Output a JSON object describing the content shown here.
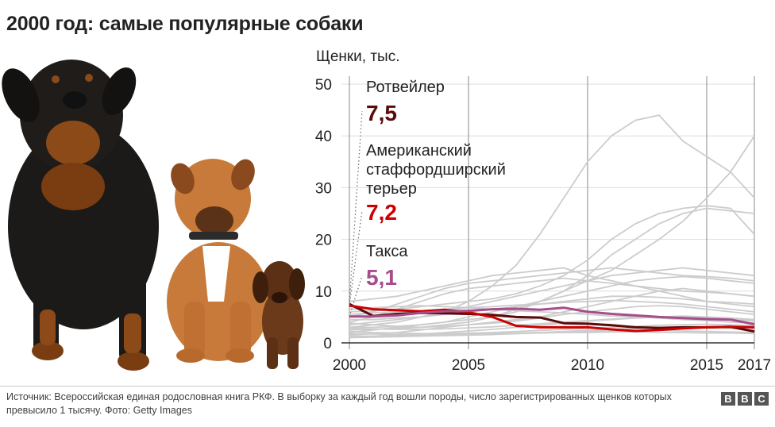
{
  "header": {
    "title": "2000 год: самые популярные собаки"
  },
  "footer": {
    "source": "Источник: Всероссийская единая родословная книга РКФ. В выборку за каждый год вошли породы, число зарегистрированных щенков которых превысило 1 тысячу. Фото: Getty Images",
    "logo": [
      "B",
      "B",
      "C"
    ]
  },
  "colors": {
    "rottweiler": "#5a0a0a",
    "amstaff": "#cc0000",
    "dachshund": "#a64d8c",
    "background_series": "#cccccc",
    "axis": "#333333"
  },
  "photo": {
    "icon": "dogs-photo",
    "subjects": [
      "rottweiler",
      "staffordshire-terrier",
      "dachshund"
    ]
  },
  "chart_data": {
    "type": "line",
    "ylabel": "Щенки, тыс.",
    "xlim": [
      2000,
      2017
    ],
    "ylim": [
      0,
      50
    ],
    "xticks": [
      2000,
      2005,
      2010,
      2015,
      2017
    ],
    "yticks": [
      0,
      10,
      20,
      30,
      40,
      50
    ],
    "x": [
      2000,
      2001,
      2002,
      2003,
      2004,
      2005,
      2006,
      2007,
      2008,
      2009,
      2010,
      2011,
      2012,
      2013,
      2014,
      2015,
      2016,
      2017
    ],
    "highlighted": [
      {
        "name": "Ротвейлер",
        "value_label": "7,5",
        "color": "#5a0a0a",
        "values": [
          7.5,
          5.2,
          5.6,
          5.8,
          5.7,
          5.6,
          5.4,
          5.0,
          4.9,
          3.8,
          3.7,
          3.4,
          3.0,
          2.9,
          3.0,
          3.0,
          3.1,
          2.2
        ]
      },
      {
        "name": "Американский стаффордширский терьер",
        "name_lines": [
          "Американский",
          "стаффордширский",
          "терьер"
        ],
        "value_label": "7,2",
        "color": "#cc0000",
        "values": [
          7.2,
          6.5,
          6.3,
          6.1,
          6.4,
          5.9,
          5.0,
          3.3,
          3.0,
          3.0,
          3.0,
          2.6,
          2.3,
          2.5,
          2.8,
          3.0,
          3.1,
          3.0
        ]
      },
      {
        "name": "Такса",
        "value_label": "5,1",
        "color": "#a64d8c",
        "values": [
          5.1,
          5.1,
          5.3,
          5.8,
          6.1,
          6.2,
          6.5,
          6.6,
          6.4,
          6.8,
          6.0,
          5.6,
          5.3,
          5.0,
          4.8,
          4.6,
          4.5,
          3.6
        ]
      }
    ],
    "background_series": [
      [
        3.5,
        4.0,
        4.5,
        5.0,
        6.0,
        8.0,
        11.0,
        15.0,
        21.0,
        28.0,
        35.0,
        40.0,
        43.0,
        44.0,
        39.0,
        36.0,
        33.0,
        28.0
      ],
      [
        3.0,
        3.0,
        3.2,
        3.5,
        4.0,
        4.5,
        5.0,
        6.0,
        8.0,
        10.0,
        12.0,
        14.0,
        17.0,
        20.0,
        23.5,
        28.0,
        33.0,
        40.0
      ],
      [
        2.5,
        2.6,
        2.8,
        3.0,
        3.5,
        4.0,
        5.0,
        6.5,
        8.0,
        10.0,
        13.0,
        17.0,
        20.0,
        23.0,
        25.0,
        26.0,
        25.5,
        25.0
      ],
      [
        6.0,
        6.2,
        6.5,
        7.0,
        7.5,
        8.0,
        8.5,
        9.5,
        11.0,
        13.0,
        16.0,
        20.0,
        23.0,
        25.0,
        26.0,
        26.5,
        26.0,
        21.0
      ],
      [
        5.0,
        6.0,
        7.5,
        9.0,
        10.5,
        11.5,
        12.0,
        12.5,
        13.0,
        13.5,
        14.0,
        14.5,
        14.0,
        13.5,
        13.0,
        12.8,
        12.5,
        12.0
      ],
      [
        4.0,
        5.0,
        6.5,
        8.0,
        9.5,
        10.5,
        11.0,
        11.5,
        12.0,
        12.5,
        12.0,
        11.5,
        11.0,
        10.5,
        10.0,
        9.8,
        9.5,
        9.0
      ],
      [
        8.0,
        8.5,
        9.0,
        10.0,
        11.0,
        12.0,
        13.0,
        13.5,
        14.0,
        14.5,
        13.0,
        12.0,
        11.0,
        10.0,
        9.0,
        8.0,
        7.5,
        7.0
      ],
      [
        3.0,
        3.5,
        4.0,
        5.0,
        6.0,
        7.0,
        8.0,
        9.0,
        10.0,
        11.0,
        12.0,
        13.0,
        13.5,
        14.0,
        14.5,
        14.0,
        13.5,
        13.0
      ],
      [
        2.0,
        2.5,
        3.0,
        3.5,
        4.0,
        5.0,
        6.0,
        7.0,
        8.0,
        9.0,
        10.0,
        11.0,
        12.0,
        12.5,
        12.8,
        12.5,
        12.0,
        11.5
      ],
      [
        4.5,
        4.5,
        4.8,
        5.0,
        5.5,
        6.0,
        6.5,
        7.0,
        7.5,
        8.0,
        8.5,
        9.0,
        9.0,
        8.8,
        8.5,
        8.0,
        7.8,
        7.5
      ],
      [
        1.5,
        1.8,
        2.0,
        2.5,
        3.0,
        3.5,
        4.0,
        4.5,
        5.0,
        6.0,
        7.0,
        8.0,
        9.0,
        10.0,
        10.5,
        10.0,
        9.5,
        9.0
      ],
      [
        3.8,
        3.5,
        3.2,
        3.0,
        3.2,
        3.5,
        3.8,
        4.2,
        4.8,
        5.5,
        6.0,
        6.5,
        7.0,
        7.2,
        7.0,
        6.5,
        6.0,
        5.5
      ],
      [
        2.8,
        2.7,
        2.6,
        2.6,
        2.7,
        2.9,
        3.1,
        3.4,
        3.7,
        4.0,
        4.3,
        4.6,
        4.8,
        5.0,
        5.0,
        4.8,
        4.6,
        4.2
      ],
      [
        1.2,
        1.3,
        1.5,
        1.7,
        2.0,
        2.3,
        2.6,
        3.0,
        3.4,
        3.8,
        4.2,
        4.5,
        4.8,
        5.0,
        5.2,
        5.0,
        4.8,
        4.5
      ],
      [
        2.2,
        2.0,
        1.9,
        1.8,
        1.8,
        1.9,
        2.0,
        2.2,
        2.4,
        2.6,
        2.8,
        3.0,
        3.2,
        3.4,
        3.5,
        3.6,
        3.5,
        3.3
      ],
      [
        1.0,
        1.1,
        1.2,
        1.3,
        1.4,
        1.5,
        1.6,
        1.8,
        2.0,
        2.2,
        2.4,
        2.6,
        2.8,
        3.0,
        3.0,
        2.9,
        2.8,
        2.6
      ],
      [
        1.8,
        1.7,
        1.6,
        1.6,
        1.6,
        1.7,
        1.8,
        1.9,
        2.0,
        2.1,
        2.2,
        2.3,
        2.4,
        2.4,
        2.3,
        2.2,
        2.1,
        2.0
      ],
      [
        1.3,
        1.3,
        1.4,
        1.4,
        1.5,
        1.6,
        1.7,
        1.8,
        1.9,
        2.0,
        2.0,
        2.1,
        2.1,
        2.0,
        2.0,
        1.9,
        1.9,
        1.8
      ],
      [
        6.5,
        6.8,
        7.0,
        7.2,
        7.0,
        6.8,
        6.5,
        6.2,
        6.0,
        5.8,
        5.5,
        5.2,
        5.0,
        4.8,
        4.5,
        4.3,
        4.0,
        3.8
      ],
      [
        5.5,
        5.8,
        6.0,
        6.2,
        6.5,
        6.8,
        7.0,
        7.3,
        7.5,
        7.8,
        8.0,
        8.2,
        8.0,
        7.8,
        7.5,
        7.0,
        6.5,
        6.0
      ]
    ]
  }
}
